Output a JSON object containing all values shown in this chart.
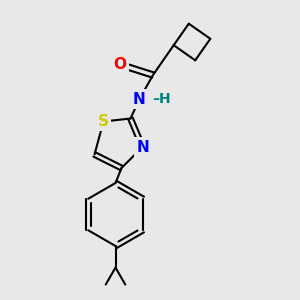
{
  "background_color": "#e8e8e8",
  "bond_color": "#000000",
  "bond_width": 1.5,
  "atom_colors": {
    "O": "#ff0000",
    "N": "#0000ff",
    "S": "#cccc00",
    "H": "#008080"
  },
  "font_size": 10
}
